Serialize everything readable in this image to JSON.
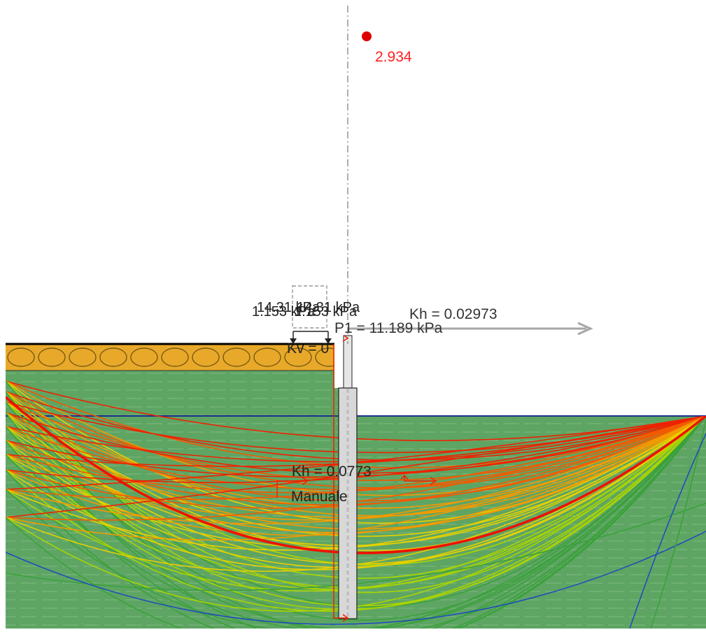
{
  "canvas": {
    "background": "#ffffff"
  },
  "slope_center": {
    "safety_factor": "2.934",
    "marker_color": "#dd0000"
  },
  "loads": {
    "distributed_label_a": "14.31 kPa",
    "distributed_label_b": "1.153 kPa",
    "distributed_label_c": "14.31 kPa",
    "distributed_label_d": "1.153 kPa",
    "point_load_label": "P1 = 11.189 kPa",
    "seismic_upper": "Kh = 0.02973",
    "vertical_seismic": "Kv = 0",
    "seismic_lower": "Kh = 0.0773",
    "anchor_mode_label": "Manuale"
  },
  "soil": {
    "fill_color": "#e8a92a",
    "clay_color": "#5ea564",
    "water_line_color": "#1a2f8c",
    "wall_color": "#d8d8d8"
  },
  "slip_surfaces": {
    "critical_color": "#ee1100",
    "palette": [
      "#ee2200",
      "#f25a00",
      "#f39a00",
      "#e6d000",
      "#a9d400",
      "#3aa13a",
      "#1f4fb8"
    ]
  }
}
